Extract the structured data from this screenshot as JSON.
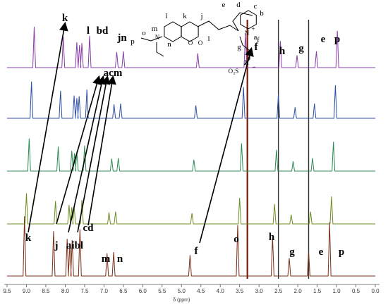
{
  "chart_data": {
    "type": "line",
    "title": "",
    "xlabel": "δ (ppm)",
    "ylabel": "",
    "xlim": [
      9.5,
      0.0
    ],
    "x_direction": "reversed",
    "grid": false,
    "legend": "none",
    "xticks": [
      "9.5",
      "9.0",
      "8.5",
      "8.0",
      "7.5",
      "7.0",
      "6.5",
      "6.0",
      "5.5",
      "5.0",
      "4.5",
      "4.0",
      "3.5",
      "3.0",
      "2.5",
      "2.0",
      "1.5",
      "1.0",
      "0.5",
      "0.0"
    ],
    "series": [
      {
        "color": "#7a2e16"
      },
      {
        "color": "#6b8e23"
      },
      {
        "color": "#2e8b57"
      },
      {
        "color": "#2e4fa3"
      },
      {
        "color": "#8a3fa8"
      }
    ],
    "reference_lines_ppm": [
      3.3,
      2.5,
      1.72
    ],
    "bottom_peaks": [
      {
        "label": "k",
        "ppm": 9.05,
        "height": 1.0
      },
      {
        "label": "j",
        "ppm": 8.3,
        "height": 0.75
      },
      {
        "label": "a",
        "ppm": 7.95,
        "height": 0.62
      },
      {
        "label": "i",
        "ppm": 7.88,
        "height": 0.55
      },
      {
        "label": "b",
        "ppm": 7.82,
        "height": 0.6
      },
      {
        "label": "l",
        "ppm": 7.62,
        "height": 0.78
      },
      {
        "label": "m",
        "ppm": 6.92,
        "height": 0.38
      },
      {
        "label": "n",
        "ppm": 6.75,
        "height": 0.4
      },
      {
        "label": "f",
        "ppm": 4.78,
        "height": 0.35
      },
      {
        "label": "o",
        "ppm": 3.55,
        "height": 0.85
      },
      {
        "label": "h",
        "ppm": 2.65,
        "height": 0.65
      },
      {
        "label": "g",
        "ppm": 2.22,
        "height": 0.3
      },
      {
        "label": "e",
        "ppm": 1.72,
        "height": 0.4
      },
      {
        "label": "p",
        "ppm": 1.18,
        "height": 0.9
      }
    ],
    "top_labels": [
      {
        "label": "k",
        "ppm": 8.9
      },
      {
        "label": "l",
        "ppm": 7.62
      },
      {
        "label": "bd",
        "ppm": 7.3
      },
      {
        "label": "jn",
        "ppm": 6.75
      },
      {
        "label": "f",
        "ppm": 3.05
      },
      {
        "label": "h",
        "ppm": 2.45
      },
      {
        "label": "g",
        "ppm": 1.95
      },
      {
        "label": "e",
        "ppm": 1.38
      },
      {
        "label": "p",
        "ppm": 1.05
      },
      {
        "label": "acm",
        "ppm": 6.95
      },
      {
        "label": "cd",
        "ppm": 7.45
      }
    ],
    "structure_labels": [
      "e",
      "d",
      "c",
      "b",
      "a",
      "l",
      "k",
      "j",
      "i",
      "m",
      "o",
      "p",
      "n",
      "f",
      "g",
      "h"
    ],
    "structure_atoms": [
      "N",
      "O",
      "O",
      "N",
      "+",
      "O₃S",
      "−"
    ]
  }
}
